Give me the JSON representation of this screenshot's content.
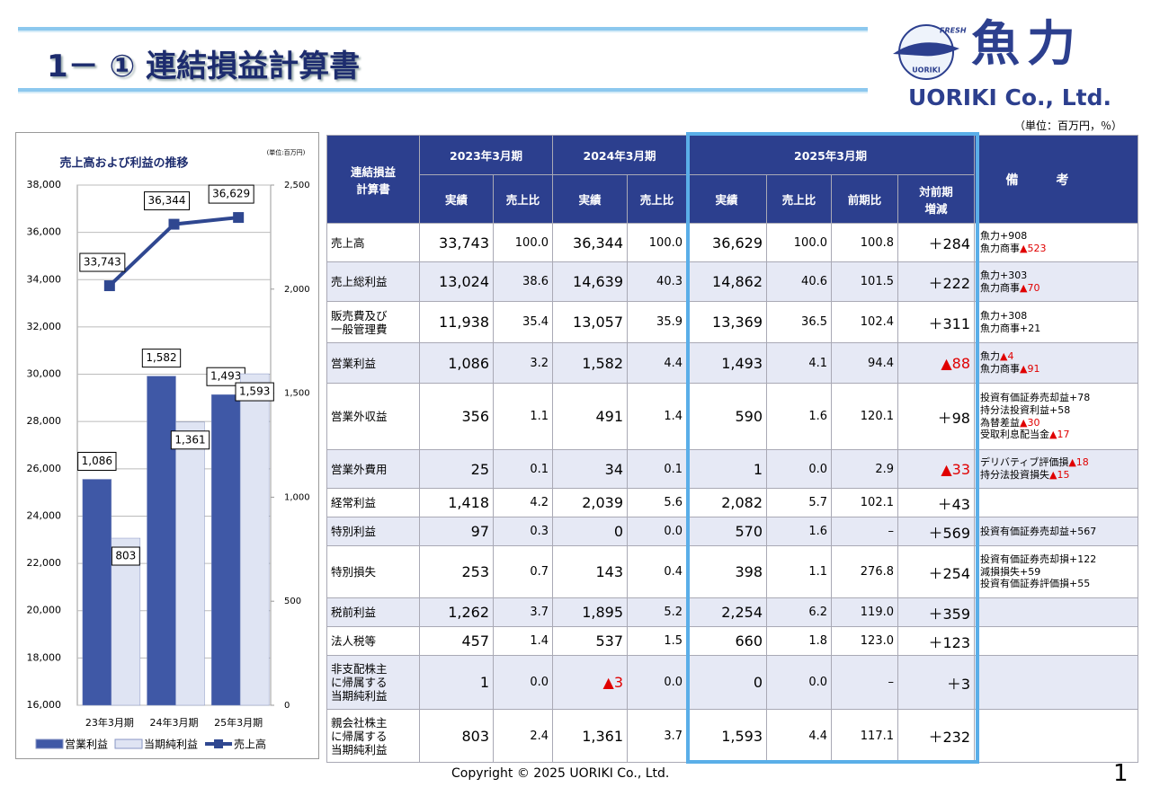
{
  "header": {
    "title": "1－ ① 連結損益計算書",
    "logo_top": "FRESH FISH",
    "logo_bottom": "UORIKI",
    "logo_text": "魚力",
    "company": "UORIKI Co., Ltd.",
    "unit": "（単位：百万円，％）"
  },
  "chart_data": {
    "type": "bar",
    "title": "売上高および利益の推移",
    "unit": "(単位:百万円)",
    "categories": [
      "23年3月期",
      "24年3月期",
      "25年3月期"
    ],
    "series": [
      {
        "name": "営業利益",
        "type": "bar",
        "axis": "y2",
        "color": "#3f58a6",
        "values": [
          1086,
          1582,
          1493
        ],
        "value_labels": [
          "1,086",
          "1,582",
          "1,493"
        ]
      },
      {
        "name": "当期純利益",
        "type": "bar",
        "axis": "y2",
        "color": "#dfe4f3",
        "values": [
          803,
          1361,
          1593
        ],
        "value_labels": [
          "803",
          "1,361",
          "1,593"
        ]
      },
      {
        "name": "売上高",
        "type": "line",
        "axis": "y",
        "color": "#2f4790",
        "values": [
          33743,
          36344,
          36629
        ],
        "value_labels": [
          "33,743",
          "36,344",
          "36,629"
        ]
      }
    ],
    "ylim": [
      16000,
      38000
    ],
    "yticks": [
      {
        "value": 16000,
        "label": "16,000"
      },
      {
        "value": 18000,
        "label": "18,000"
      },
      {
        "value": 20000,
        "label": "20,000"
      },
      {
        "value": 22000,
        "label": "22,000"
      },
      {
        "value": 24000,
        "label": "24,000"
      },
      {
        "value": 26000,
        "label": "26,000"
      },
      {
        "value": 28000,
        "label": "28,000"
      },
      {
        "value": 30000,
        "label": "30,000"
      },
      {
        "value": 32000,
        "label": "32,000"
      },
      {
        "value": 34000,
        "label": "34,000"
      },
      {
        "value": 36000,
        "label": "36,000"
      },
      {
        "value": 38000,
        "label": "38,000"
      }
    ],
    "y2lim": [
      0,
      2500
    ],
    "y2ticks": [
      0,
      500,
      {
        "value": 1000,
        "label": "1,000"
      },
      {
        "value": 1500,
        "label": "1,500"
      },
      {
        "value": 2000,
        "label": "2,000"
      },
      {
        "value": 2500,
        "label": "2,500"
      }
    ],
    "grid": true
  },
  "table": {
    "corner": "連結損益計算書",
    "periods": [
      "2023年3月期",
      "2024年3月期",
      "2025年3月期"
    ],
    "subheaders": [
      "実績",
      "売上比",
      "実績",
      "売上比",
      "実績",
      "売上比",
      "前期比",
      "対前期増減"
    ],
    "remarks_header": "備考",
    "rows": [
      {
        "label": "売上高",
        "cells": [
          "33,743",
          "100.0",
          "36,344",
          "100.0",
          "36,629",
          "100.0",
          "100.8",
          "＋284"
        ],
        "remarks": [
          "魚力+908",
          "魚力商事▲523"
        ]
      },
      {
        "label": "売上総利益",
        "cells": [
          "13,024",
          "38.6",
          "14,639",
          "40.3",
          "14,862",
          "40.6",
          "101.5",
          "＋222"
        ],
        "remarks": [
          "魚力+303",
          "魚力商事▲70"
        ]
      },
      {
        "label": "販売費及び一般管理費",
        "cells": [
          "11,938",
          "35.4",
          "13,057",
          "35.9",
          "13,369",
          "36.5",
          "102.4",
          "＋311"
        ],
        "remarks": [
          "魚力+308",
          "魚力商事+21"
        ]
      },
      {
        "label": "営業利益",
        "cells": [
          "1,086",
          "3.2",
          "1,582",
          "4.4",
          "1,493",
          "4.1",
          "94.4",
          "▲88"
        ],
        "remarks": [
          "魚力▲4",
          "魚力商事▲91"
        ]
      },
      {
        "label": "営業外収益",
        "cells": [
          "356",
          "1.1",
          "491",
          "1.4",
          "590",
          "1.6",
          "120.1",
          "＋98"
        ],
        "remarks": [
          "投資有価証券売却益+78",
          "持分法投資利益+58",
          "為替差益▲30",
          "受取利息配当金▲17"
        ]
      },
      {
        "label": "営業外費用",
        "cells": [
          "25",
          "0.1",
          "34",
          "0.1",
          "1",
          "0.0",
          "2.9",
          "▲33"
        ],
        "remarks": [
          "デリバティブ評価損▲18",
          "持分法投資損失▲15"
        ]
      },
      {
        "label": "経常利益",
        "cells": [
          "1,418",
          "4.2",
          "2,039",
          "5.6",
          "2,082",
          "5.7",
          "102.1",
          "＋43"
        ],
        "remarks": []
      },
      {
        "label": "特別利益",
        "cells": [
          "97",
          "0.3",
          "0",
          "0.0",
          "570",
          "1.6",
          "–",
          "＋569"
        ],
        "remarks": [
          "投資有価証券売却益+567"
        ]
      },
      {
        "label": "特別損失",
        "cells": [
          "253",
          "0.7",
          "143",
          "0.4",
          "398",
          "1.1",
          "276.8",
          "＋254"
        ],
        "remarks": [
          "投資有価証券売却損+122",
          "減損損失+59",
          "投資有価証券評価損+55"
        ]
      },
      {
        "label": "税前利益",
        "cells": [
          "1,262",
          "3.7",
          "1,895",
          "5.2",
          "2,254",
          "6.2",
          "119.0",
          "＋359"
        ],
        "remarks": []
      },
      {
        "label": "法人税等",
        "cells": [
          "457",
          "1.4",
          "537",
          "1.5",
          "660",
          "1.8",
          "123.0",
          "＋123"
        ],
        "remarks": []
      },
      {
        "label": "非支配株主に帰属する当期純利益",
        "cells": [
          "1",
          "0.0",
          "▲3",
          "0.0",
          "0",
          "0.0",
          "–",
          "＋3"
        ],
        "remarks": []
      },
      {
        "label": "親会社株主に帰属する当期純利益",
        "cells": [
          "803",
          "2.4",
          "1,361",
          "3.7",
          "1,593",
          "4.4",
          "117.1",
          "＋232"
        ],
        "remarks": []
      }
    ]
  },
  "footer": {
    "copyright": "Copyright © 2025 UORIKI Co., Ltd.",
    "page": "1"
  }
}
